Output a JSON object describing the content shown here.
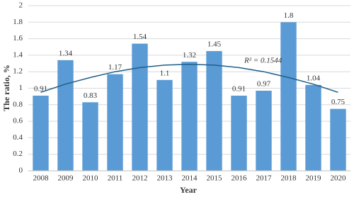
{
  "chart_data": {
    "type": "bar",
    "x_label": "Year",
    "y_label": "The ratio, %",
    "categories": [
      "2008",
      "2009",
      "2010",
      "2011",
      "2012",
      "2013",
      "2014",
      "2015",
      "2016",
      "2017",
      "2018",
      "2019",
      "2020"
    ],
    "values": [
      0.91,
      1.34,
      0.83,
      1.17,
      1.54,
      1.1,
      1.32,
      1.45,
      0.91,
      0.97,
      1.8,
      1.04,
      0.75
    ],
    "color": "#5b9bd5",
    "ylim": [
      0,
      2
    ],
    "yticks": [
      0,
      0.2,
      0.4,
      0.6,
      0.8,
      1,
      1.2,
      1.4,
      1.6,
      1.8,
      2
    ],
    "grid": true,
    "trendline": {
      "label": "R² = 0.1544",
      "color": "#1f5f8b",
      "values": [
        0.95,
        1.05,
        1.13,
        1.2,
        1.25,
        1.28,
        1.29,
        1.28,
        1.25,
        1.2,
        1.13,
        1.05,
        0.95
      ]
    }
  }
}
